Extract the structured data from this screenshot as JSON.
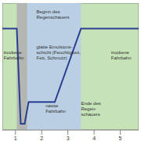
{
  "chart_data": {
    "type": "line",
    "x": [
      0.5,
      1.05,
      1.2,
      1.35,
      1.5,
      2.5,
      3.5,
      5.7
    ],
    "values": [
      0.8,
      0.8,
      0.05,
      0.05,
      0.22,
      0.22,
      0.8,
      0.8
    ],
    "color": "#2a3f8f",
    "xlim": [
      0.5,
      5.7
    ],
    "ylim": [
      0,
      1
    ],
    "xticks": [
      1,
      2,
      3,
      4,
      5
    ],
    "yticks": [
      0.2,
      0.4,
      0.6,
      0.8
    ],
    "grid": true,
    "tick_labels": "x",
    "background": "#c6e3b8",
    "spans": [
      {
        "x0": 1.05,
        "x1": 1.45,
        "color": "#b0b0b0"
      },
      {
        "x0": 1.45,
        "x1": 3.5,
        "color": "#b8cce8"
      }
    ],
    "annotations": [
      {
        "x": 0.55,
        "y": 0.6,
        "lines": [
          "trockene",
          "Fahrbahn"
        ]
      },
      {
        "x": 1.8,
        "y": 0.92,
        "lines": [
          "Beginn des",
          "Regenschauers"
        ]
      },
      {
        "x": 1.8,
        "y": 0.64,
        "lines": [
          "glatte Emulsions-",
          "schicht (Feuchtigkeit,",
          "Fett, Schmutz)"
        ]
      },
      {
        "x": 2.15,
        "y": 0.18,
        "lines": [
          "nasse",
          "Fahrbahn"
        ]
      },
      {
        "x": 3.5,
        "y": 0.2,
        "lines": [
          "Ende des",
          "Regen-",
          "schauers"
        ]
      },
      {
        "x": 4.65,
        "y": 0.6,
        "lines": [
          "trockene",
          "Fahrbahn"
        ]
      }
    ]
  }
}
